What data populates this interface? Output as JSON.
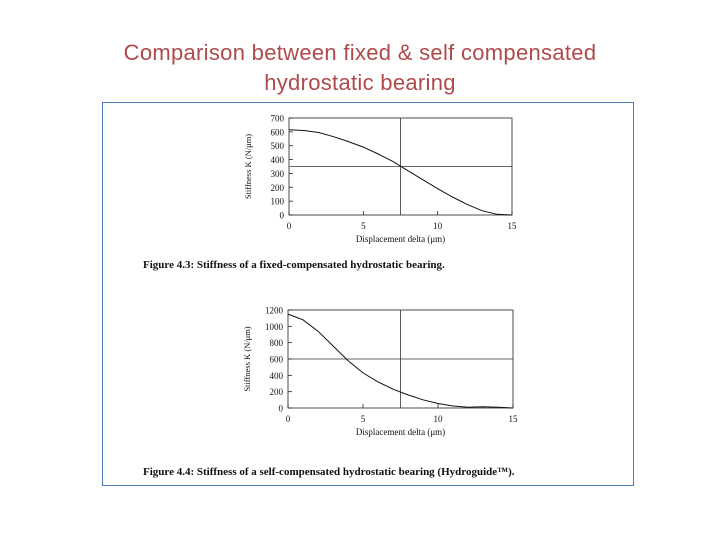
{
  "slide": {
    "title_line1": "Comparison between fixed & self compensated",
    "title_line2": "hydrostatic bearing"
  },
  "colors": {
    "title": "#b04a4a",
    "frame": "#4f7fb8",
    "curve": "#111111"
  },
  "chart_data": [
    {
      "type": "line",
      "caption": "Figure 4.3: Stiffness of a fixed-compensated hydrostatic bearing.",
      "xlabel": "Displacement delta (μm)",
      "ylabel": "Stiffness K (N/μm)",
      "xlim": [
        0,
        15
      ],
      "ylim": [
        0,
        700
      ],
      "xticks": [
        0,
        5,
        10,
        15
      ],
      "yticks": [
        0,
        100,
        200,
        300,
        400,
        500,
        600,
        700
      ],
      "xtick_labels": [
        "0",
        "5",
        "10",
        "15"
      ],
      "ytick_labels": [
        "0",
        "100",
        "200",
        "300",
        "400",
        "500",
        "600",
        "700"
      ],
      "crosshair": {
        "x": 7.5,
        "y": 350
      },
      "grid": false,
      "series": [
        {
          "x": [
            0,
            1,
            2,
            3,
            4,
            5,
            6,
            7,
            8,
            9,
            10,
            11,
            12,
            13,
            14,
            15
          ],
          "y": [
            615,
            610,
            595,
            565,
            530,
            490,
            440,
            385,
            320,
            255,
            190,
            130,
            75,
            30,
            5,
            0
          ]
        }
      ]
    },
    {
      "type": "line",
      "caption": "Figure 4.4: Stiffness of a self-compensated hydrostatic bearing (Hydroguide™).",
      "xlabel": "Displacement delta (μm)",
      "ylabel": "Stiffness K (N/μm)",
      "xlim": [
        0,
        15
      ],
      "ylim": [
        0,
        1200
      ],
      "xticks": [
        0,
        5,
        10,
        15
      ],
      "yticks": [
        0,
        200,
        400,
        600,
        800,
        1000,
        1200
      ],
      "xtick_labels": [
        "0",
        "5",
        "10",
        "15"
      ],
      "ytick_labels": [
        "0",
        "200",
        "400",
        "600",
        "800",
        "1000",
        "1200"
      ],
      "crosshair": {
        "x": 7.5,
        "y": 600
      },
      "grid": false,
      "series": [
        {
          "x": [
            0,
            1,
            2,
            3,
            4,
            5,
            6,
            7,
            8,
            9,
            10,
            11,
            12,
            13,
            14,
            15
          ],
          "y": [
            1150,
            1080,
            940,
            760,
            580,
            430,
            320,
            230,
            160,
            100,
            55,
            25,
            10,
            15,
            10,
            0
          ]
        }
      ]
    }
  ]
}
